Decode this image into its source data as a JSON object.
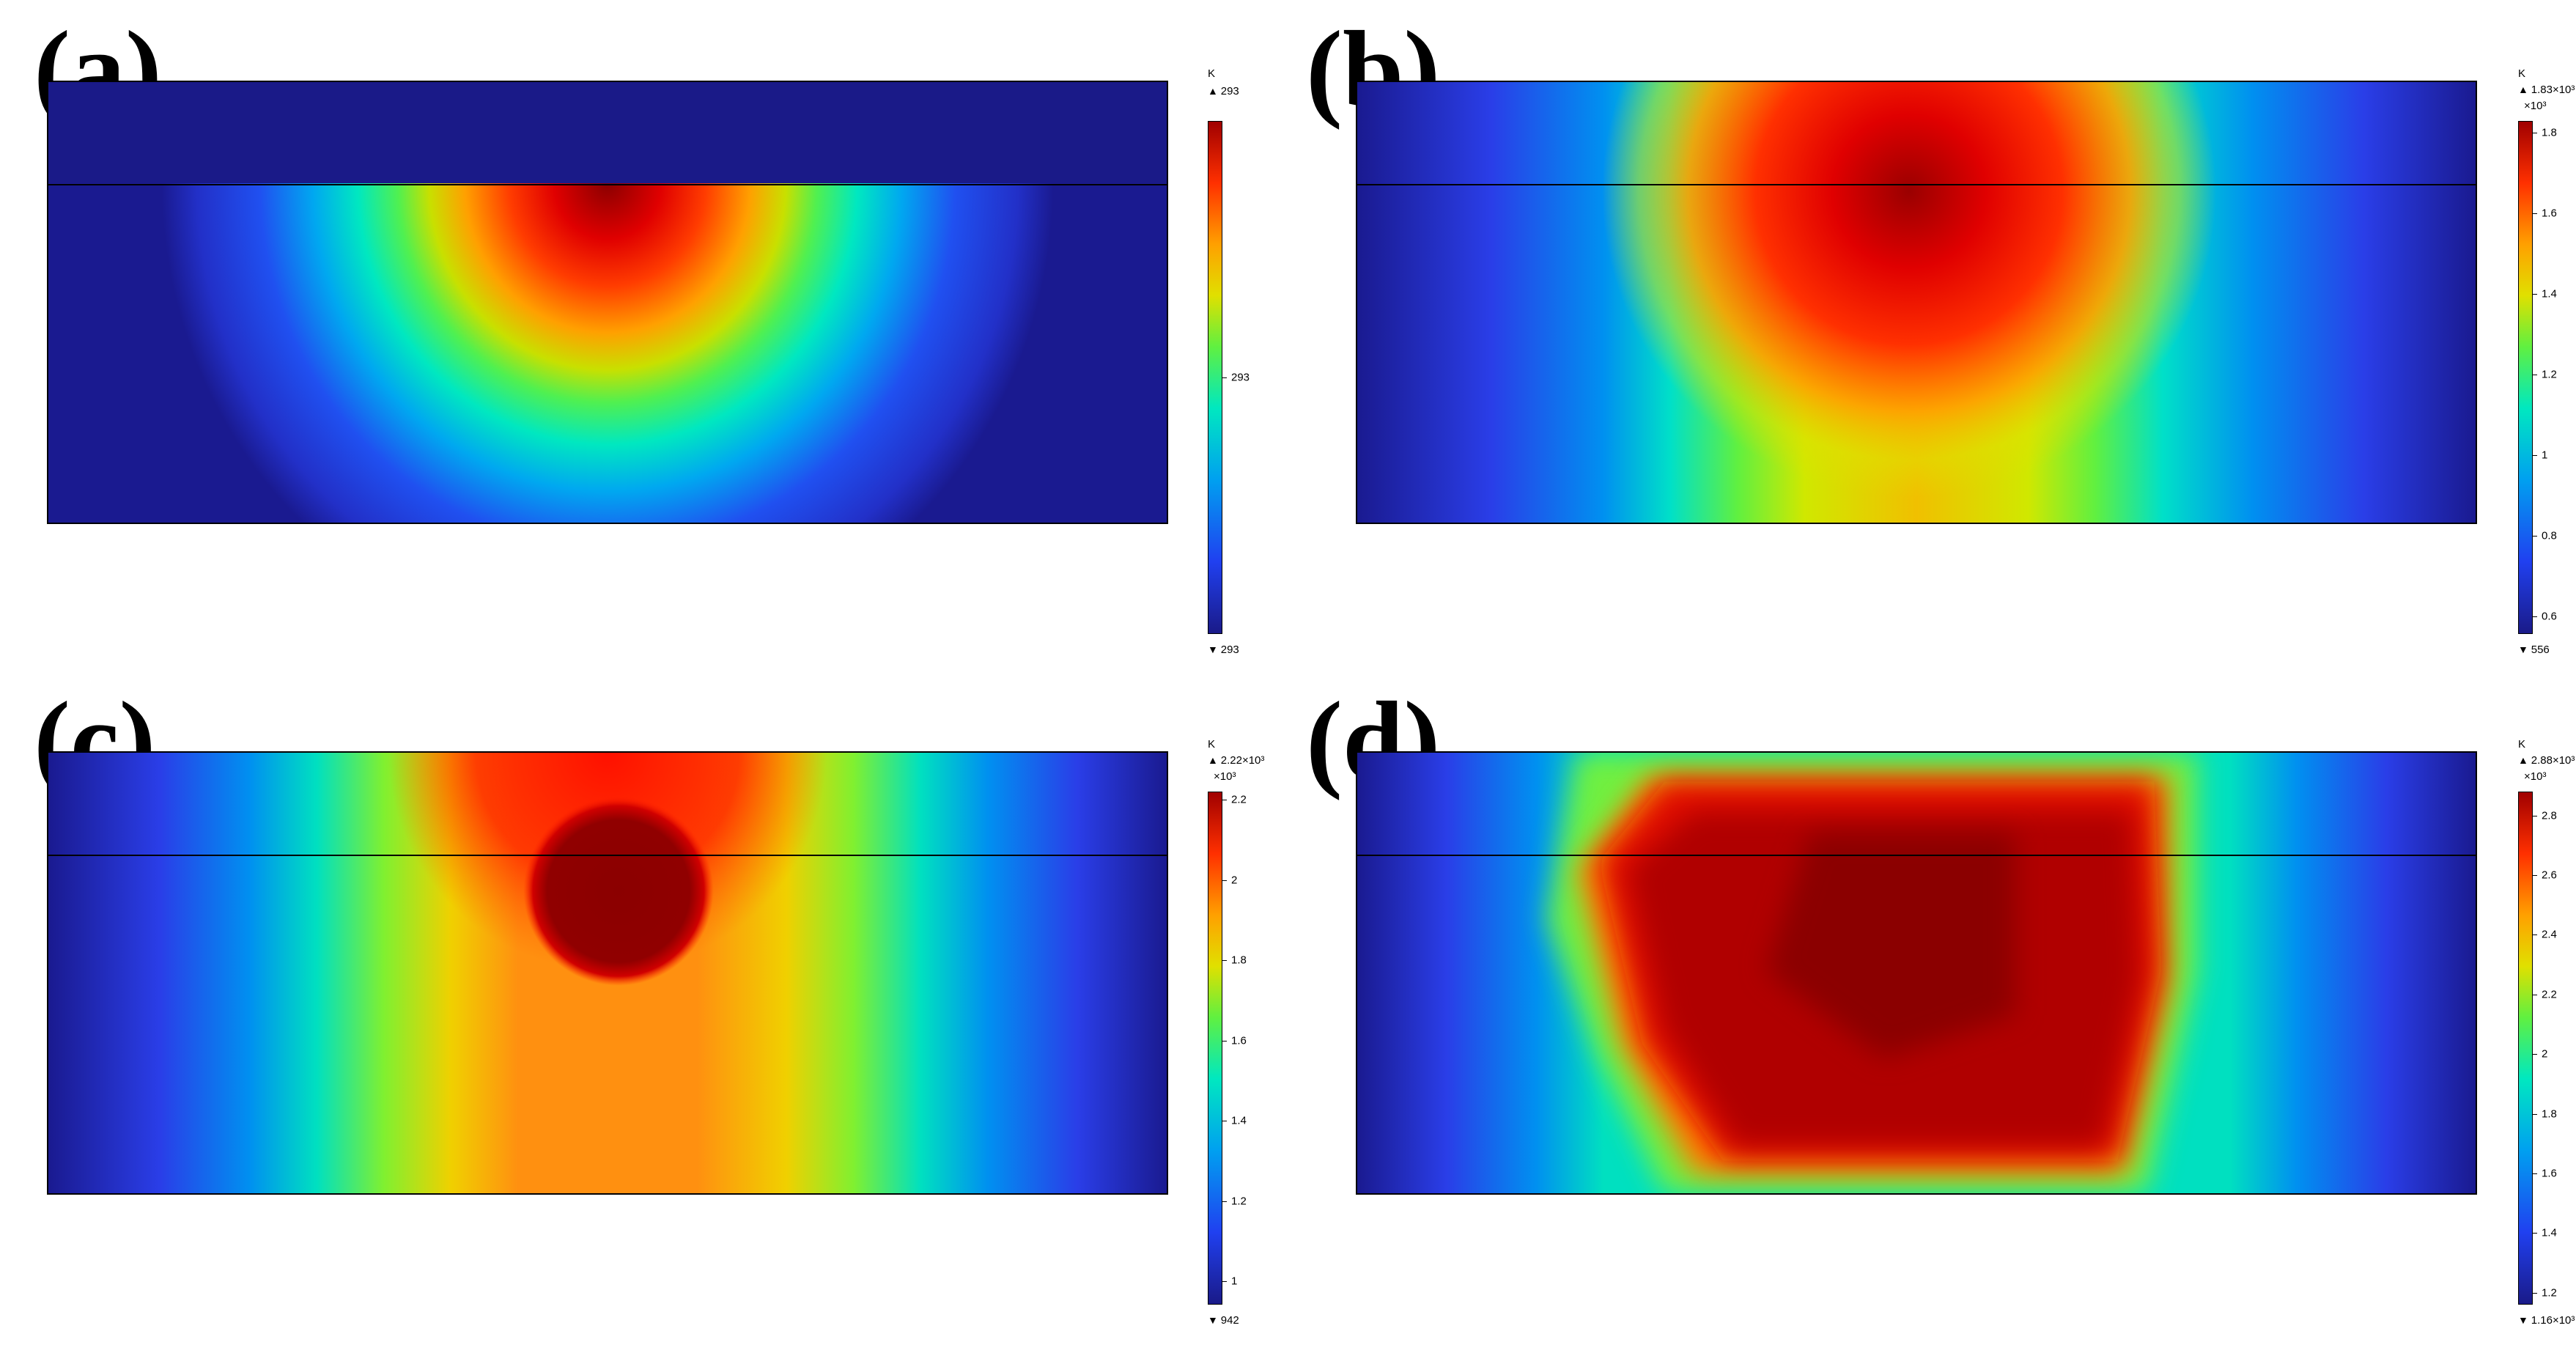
{
  "panels": [
    {
      "label": "(a)",
      "colorbar": {
        "unit": "K",
        "max_label": "293",
        "exp_label": "",
        "min_label": "293",
        "ticks": [
          {
            "value": 293,
            "label": "293"
          }
        ],
        "range": [
          292,
          294
        ]
      }
    },
    {
      "label": "(b)",
      "colorbar": {
        "unit": "K",
        "max_label": "1.83×10³",
        "exp_label": "×10³",
        "min_label": "556",
        "ticks": [
          {
            "value": 0.6,
            "label": "0.6"
          },
          {
            "value": 0.8,
            "label": "0.8"
          },
          {
            "value": 1,
            "label": "1"
          },
          {
            "value": 1.2,
            "label": "1.2"
          },
          {
            "value": 1.4,
            "label": "1.4"
          },
          {
            "value": 1.6,
            "label": "1.6"
          },
          {
            "value": 1.8,
            "label": "1.8"
          }
        ],
        "range": [
          0.556,
          1.83
        ]
      }
    },
    {
      "label": "(c)",
      "colorbar": {
        "unit": "K",
        "max_label": "2.22×10³",
        "exp_label": "×10³",
        "min_label": "942",
        "ticks": [
          {
            "value": 1,
            "label": "1"
          },
          {
            "value": 1.2,
            "label": "1.2"
          },
          {
            "value": 1.4,
            "label": "1.4"
          },
          {
            "value": 1.6,
            "label": "1.6"
          },
          {
            "value": 1.8,
            "label": "1.8"
          },
          {
            "value": 2,
            "label": "2"
          },
          {
            "value": 2.2,
            "label": "2.2"
          }
        ],
        "range": [
          0.942,
          2.22
        ]
      }
    },
    {
      "label": "(d)",
      "colorbar": {
        "unit": "K",
        "max_label": "2.88×10³",
        "exp_label": "×10³",
        "min_label": "1.16×10³",
        "ticks": [
          {
            "value": 1.2,
            "label": "1.2"
          },
          {
            "value": 1.4,
            "label": "1.4"
          },
          {
            "value": 1.6,
            "label": "1.6"
          },
          {
            "value": 1.8,
            "label": "1.8"
          },
          {
            "value": 2,
            "label": "2"
          },
          {
            "value": 2.2,
            "label": "2.2"
          },
          {
            "value": 2.4,
            "label": "2.4"
          },
          {
            "value": 2.6,
            "label": "2.6"
          },
          {
            "value": 2.8,
            "label": "2.8"
          }
        ],
        "range": [
          1.16,
          2.88
        ]
      }
    }
  ],
  "chart_data": [
    {
      "type": "heatmap",
      "title": "(a)",
      "colorbar_label": "K",
      "min": 293,
      "max": 293,
      "colormap": "rainbow",
      "hotspot": "top-center"
    },
    {
      "type": "heatmap",
      "title": "(b)",
      "colorbar_label": "K",
      "min": 556,
      "max": 1830,
      "colormap": "rainbow",
      "hotspot": "center-upper"
    },
    {
      "type": "heatmap",
      "title": "(c)",
      "colorbar_label": "K",
      "min": 942,
      "max": 2220,
      "colormap": "rainbow",
      "hotspot": "center-upper"
    },
    {
      "type": "heatmap",
      "title": "(d)",
      "colorbar_label": "K",
      "min": 1160,
      "max": 2880,
      "colormap": "rainbow",
      "hotspot": "center-large"
    }
  ]
}
